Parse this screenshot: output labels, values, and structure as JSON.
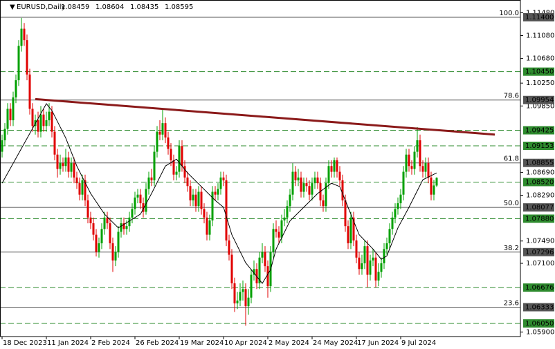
{
  "header": {
    "symbol": "EURUSD,Daily",
    "ohlc": [
      "1.08459",
      "1.08604",
      "1.08435",
      "1.08595"
    ]
  },
  "chart_data": {
    "type": "candlestick",
    "open": [
      1.0905,
      1.0925,
      1.0945,
      1.098,
      1.096,
      1.1,
      1.103,
      1.109,
      1.112,
      1.11,
      1.104,
      1.098,
      1.095,
      1.096,
      1.094,
      1.097,
      1.095,
      1.096,
      1.0975,
      1.094,
      1.09,
      1.0875,
      1.0885,
      1.088,
      1.0895,
      1.087,
      1.0885,
      1.086,
      1.085,
      1.083,
      1.0855,
      1.082,
      1.079,
      1.078,
      1.076,
      1.073,
      1.0745,
      1.077,
      1.079,
      1.078,
      1.0745,
      1.0715,
      1.073,
      1.0765,
      1.078,
      1.077,
      1.0775,
      1.079,
      1.0805,
      1.0825,
      1.083,
      1.0815,
      1.08,
      1.084,
      1.086,
      1.0855,
      1.0905,
      1.094,
      1.0935,
      1.0955,
      1.093,
      1.091,
      1.089,
      1.0865,
      1.087,
      1.0915,
      1.088,
      1.086,
      1.0845,
      1.082,
      1.083,
      1.081,
      1.0835,
      1.0805,
      1.079,
      1.076,
      1.0785,
      1.0835,
      1.083,
      1.084,
      1.086,
      1.0855,
      1.075,
      1.0725,
      1.0675,
      1.064,
      1.0645,
      1.066,
      1.0665,
      1.0635,
      1.065,
      1.069,
      1.07,
      1.0675,
      1.072,
      1.073,
      1.0705,
      1.067,
      1.073,
      1.077,
      1.0765,
      1.0755,
      1.0785,
      1.079,
      1.081,
      1.083,
      1.087,
      1.0855,
      1.086,
      1.0835,
      1.085,
      1.0845,
      1.083,
      1.085,
      1.086,
      1.085,
      1.082,
      1.081,
      1.085,
      1.088,
      1.087,
      1.089,
      1.087,
      1.0855,
      1.082,
      1.0775,
      1.0745,
      1.079,
      1.075,
      1.072,
      1.07,
      1.071,
      1.074,
      1.069,
      1.0715,
      1.072,
      1.068,
      1.0695,
      1.071,
      1.0735,
      1.0745,
      1.077,
      1.079,
      1.0805,
      1.0815,
      1.083,
      1.087,
      1.09,
      1.088,
      1.0875,
      1.0905,
      1.0925,
      1.088,
      1.087,
      1.0885,
      1.086,
      1.083,
      1.08459
    ],
    "high": [
      1.0935,
      1.0955,
      1.099,
      1.099,
      1.101,
      1.104,
      1.11,
      1.1139,
      1.113,
      1.111,
      1.105,
      1.099,
      1.097,
      1.0975,
      1.0985,
      1.098,
      1.0975,
      1.099,
      1.0985,
      1.095,
      1.091,
      1.09,
      1.0895,
      1.091,
      1.0905,
      1.0895,
      1.0895,
      1.087,
      1.086,
      1.0865,
      1.0865,
      1.083,
      1.08,
      1.079,
      1.077,
      1.0755,
      1.078,
      1.08,
      1.08,
      1.079,
      1.0755,
      1.074,
      1.0775,
      1.079,
      1.079,
      1.0785,
      1.08,
      1.0815,
      1.0835,
      1.084,
      1.084,
      1.0825,
      1.085,
      1.087,
      1.0875,
      1.0915,
      1.095,
      1.096,
      1.0981,
      1.0965,
      1.094,
      1.092,
      1.09,
      1.088,
      1.0925,
      1.0925,
      1.089,
      1.087,
      1.0855,
      1.084,
      1.084,
      1.0845,
      1.0845,
      1.0815,
      1.08,
      1.0795,
      1.0845,
      1.0845,
      1.085,
      1.087,
      1.087,
      1.0865,
      1.076,
      1.0735,
      1.0685,
      1.066,
      1.0675,
      1.068,
      1.0675,
      1.0665,
      1.07,
      1.0715,
      1.071,
      1.073,
      1.0745,
      1.074,
      1.0715,
      1.074,
      1.078,
      1.0785,
      1.0775,
      1.0795,
      1.0805,
      1.082,
      1.084,
      1.0885,
      1.088,
      1.0875,
      1.087,
      1.086,
      1.086,
      1.0855,
      1.086,
      1.087,
      1.087,
      1.086,
      1.083,
      1.086,
      1.089,
      1.089,
      1.0895,
      1.0895,
      1.088,
      1.0865,
      1.083,
      1.0785,
      1.08,
      1.08,
      1.076,
      1.073,
      1.0725,
      1.075,
      1.075,
      1.0725,
      1.0735,
      1.073,
      1.071,
      1.072,
      1.0745,
      1.0755,
      1.078,
      1.08,
      1.0815,
      1.0825,
      1.084,
      1.088,
      1.091,
      1.091,
      1.089,
      1.0915,
      1.0948,
      1.0935,
      1.089,
      1.0895,
      1.0895,
      1.087,
      1.0856,
      1.08604
    ],
    "low": [
      1.0895,
      1.0915,
      1.0935,
      1.095,
      1.095,
      1.099,
      1.102,
      1.108,
      1.109,
      1.103,
      1.097,
      1.094,
      1.0935,
      1.093,
      1.093,
      1.094,
      1.094,
      1.095,
      1.093,
      1.089,
      1.086,
      1.0865,
      1.087,
      1.087,
      1.086,
      1.086,
      1.085,
      1.084,
      1.082,
      1.082,
      1.081,
      1.078,
      1.077,
      1.075,
      1.0722,
      1.072,
      1.0735,
      1.076,
      1.077,
      1.0735,
      1.0695,
      1.0705,
      1.072,
      1.0755,
      1.076,
      1.076,
      1.0765,
      1.078,
      1.0795,
      1.0815,
      1.0805,
      1.079,
      1.0795,
      1.083,
      1.0845,
      1.0845,
      1.0895,
      1.0925,
      1.0925,
      1.092,
      1.09,
      1.088,
      1.0855,
      1.0855,
      1.086,
      1.087,
      1.085,
      1.0835,
      1.081,
      1.081,
      1.08,
      1.08,
      1.0795,
      1.078,
      1.075,
      1.075,
      1.0775,
      1.082,
      1.082,
      1.083,
      1.0845,
      1.074,
      1.0715,
      1.0665,
      1.0625,
      1.063,
      1.0635,
      1.0645,
      1.0601,
      1.062,
      1.064,
      1.068,
      1.0665,
      1.0665,
      1.071,
      1.0695,
      1.065,
      1.066,
      1.072,
      1.0755,
      1.0745,
      1.0745,
      1.0775,
      1.078,
      1.08,
      1.082,
      1.0845,
      1.0845,
      1.0825,
      1.0825,
      1.0835,
      1.082,
      1.082,
      1.084,
      1.084,
      1.081,
      1.08,
      1.08,
      1.084,
      1.086,
      1.086,
      1.086,
      1.0845,
      1.081,
      1.0765,
      1.0735,
      1.0735,
      1.074,
      1.071,
      1.069,
      1.069,
      1.07,
      1.0668,
      1.068,
      1.0705,
      1.0668,
      1.067,
      1.0685,
      1.07,
      1.0725,
      1.0735,
      1.076,
      1.078,
      1.0795,
      1.0805,
      1.082,
      1.086,
      1.087,
      1.0865,
      1.0865,
      1.0895,
      1.087,
      1.086,
      1.086,
      1.085,
      1.082,
      1.082,
      1.08435
    ],
    "close": [
      1.0925,
      1.0945,
      1.098,
      1.096,
      1.1,
      1.103,
      1.109,
      1.112,
      1.11,
      1.104,
      1.098,
      1.095,
      1.096,
      1.094,
      1.097,
      1.095,
      1.096,
      1.0975,
      1.094,
      1.09,
      1.0875,
      1.0885,
      1.088,
      1.0895,
      1.087,
      1.0885,
      1.086,
      1.085,
      1.083,
      1.0855,
      1.082,
      1.079,
      1.078,
      1.076,
      1.073,
      1.0745,
      1.077,
      1.079,
      1.078,
      1.0745,
      1.0715,
      1.073,
      1.0765,
      1.078,
      1.077,
      1.0775,
      1.079,
      1.0805,
      1.0825,
      1.083,
      1.0815,
      1.08,
      1.084,
      1.086,
      1.0855,
      1.0905,
      1.094,
      1.0935,
      1.0955,
      1.093,
      1.091,
      1.089,
      1.0865,
      1.087,
      1.0915,
      1.088,
      1.086,
      1.0845,
      1.082,
      1.083,
      1.081,
      1.0835,
      1.0805,
      1.079,
      1.076,
      1.0785,
      1.0835,
      1.083,
      1.084,
      1.086,
      1.0855,
      1.075,
      1.0725,
      1.0675,
      1.064,
      1.0645,
      1.066,
      1.0665,
      1.0635,
      1.065,
      1.069,
      1.07,
      1.0675,
      1.072,
      1.073,
      1.0705,
      1.067,
      1.073,
      1.077,
      1.0765,
      1.0755,
      1.0785,
      1.079,
      1.081,
      1.083,
      1.087,
      1.0855,
      1.086,
      1.0835,
      1.085,
      1.0845,
      1.083,
      1.085,
      1.086,
      1.085,
      1.082,
      1.081,
      1.085,
      1.088,
      1.087,
      1.089,
      1.087,
      1.0855,
      1.082,
      1.0775,
      1.0745,
      1.079,
      1.075,
      1.072,
      1.07,
      1.071,
      1.074,
      1.069,
      1.0715,
      1.072,
      1.068,
      1.0695,
      1.071,
      1.0735,
      1.0745,
      1.077,
      1.079,
      1.0805,
      1.0815,
      1.083,
      1.087,
      1.09,
      1.088,
      1.0875,
      1.0905,
      1.0925,
      1.088,
      1.087,
      1.0885,
      1.086,
      1.083,
      1.0846,
      1.08595
    ],
    "up_color": "#00a000",
    "down_color": "#e00000",
    "ma": {
      "x": [
        0,
        16,
        18,
        23,
        27,
        32,
        37,
        42,
        46,
        50,
        54,
        59,
        63,
        67,
        72,
        77,
        80,
        83,
        88,
        92,
        94,
        97,
        99,
        104,
        109,
        114,
        119,
        122,
        125,
        129,
        134,
        137,
        139,
        143,
        147,
        152,
        157
      ],
      "values": [
        1.085,
        1.0989,
        1.0977,
        1.0929,
        1.088,
        1.0832,
        1.0796,
        1.0772,
        1.0784,
        1.0796,
        1.0832,
        1.088,
        1.0892,
        1.0868,
        1.0844,
        1.082,
        1.0808,
        1.076,
        1.0711,
        1.0687,
        1.0675,
        1.0699,
        1.0735,
        1.0784,
        1.0808,
        1.0832,
        1.085,
        1.0844,
        1.0808,
        1.076,
        1.0735,
        1.0717,
        1.0723,
        1.0772,
        1.0808,
        1.0856,
        1.0868
      ],
      "color": "#000000"
    },
    "trendline": {
      "x": [
        12,
        178
      ],
      "values": [
        1.0997,
        1.0935
      ],
      "color": "#8b1a1a"
    },
    "levels": [
      {
        "value": 1.114,
        "label": "1.11400",
        "fib": "100.0",
        "style": "solid",
        "color": "#555555"
      },
      {
        "value": 1.1045,
        "label": "1.10450",
        "style": "dashed",
        "color": "#2e8b2e"
      },
      {
        "value": 1.09954,
        "label": "1.09954",
        "fib": "78.6",
        "style": "solid",
        "color": "#555555"
      },
      {
        "value": 1.09425,
        "label": "1.09425",
        "style": "dashed",
        "color": "#2e8b2e"
      },
      {
        "value": 1.09153,
        "label": "1.09153",
        "style": "dashed",
        "color": "#2e8b2e"
      },
      {
        "value": 1.08855,
        "label": "1.08855",
        "fib": "61.8",
        "style": "solid",
        "color": "#555555"
      },
      {
        "value": 1.0852,
        "label": "1.08520",
        "style": "dashed",
        "color": "#2e8b2e"
      },
      {
        "value": 1.08077,
        "label": "1.08077",
        "fib": "50.0",
        "style": "solid",
        "color": "#555555"
      },
      {
        "value": 1.0788,
        "label": "1.07880",
        "style": "dashed",
        "color": "#2e8b2e"
      },
      {
        "value": 1.07296,
        "label": "1.07296",
        "fib": "38.2",
        "style": "solid",
        "color": "#555555"
      },
      {
        "value": 1.06676,
        "label": "1.06676",
        "style": "dashed",
        "color": "#2e8b2e"
      },
      {
        "value": 1.06333,
        "label": "1.06333",
        "fib": "23.6",
        "style": "solid",
        "color": "#555555"
      },
      {
        "value": 1.0605,
        "label": "1.06050",
        "style": "dashed",
        "color": "#2e8b2e"
      }
    ],
    "xlim": [
      -0.75,
      187.25
    ],
    "ylim": [
      1.0582,
      1.11702
    ],
    "yticks": [
      {
        "value": 1.1148,
        "label": "1.11480"
      },
      {
        "value": 1.1108,
        "label": "1.11080"
      },
      {
        "value": 1.1068,
        "label": "1.10680"
      },
      {
        "value": 1.1025,
        "label": "1.10250"
      },
      {
        "value": 1.0985,
        "label": "1.09850"
      },
      {
        "value": 1.0869,
        "label": "1.08690"
      },
      {
        "value": 1.0829,
        "label": "1.08290"
      },
      {
        "value": 1.0749,
        "label": "1.07490"
      },
      {
        "value": 1.071,
        "label": "1.07100"
      },
      {
        "value": 1.059,
        "label": "1.05900"
      }
    ],
    "xticks": [
      {
        "value": 0,
        "label": "18 Dec 2023"
      },
      {
        "value": 16,
        "label": "11 Jan 2024"
      },
      {
        "value": 32,
        "label": "2 Feb 2024"
      },
      {
        "value": 48,
        "label": "26 Feb 2024"
      },
      {
        "value": 64,
        "label": "19 Mar 2024"
      },
      {
        "value": 80,
        "label": "10 Apr 2024"
      },
      {
        "value": 96,
        "label": "2 May 2024"
      },
      {
        "value": 112,
        "label": "24 May 2024"
      },
      {
        "value": 128,
        "label": "17 Jun 2024"
      },
      {
        "value": 144,
        "label": "9 Jul 2024"
      }
    ]
  }
}
